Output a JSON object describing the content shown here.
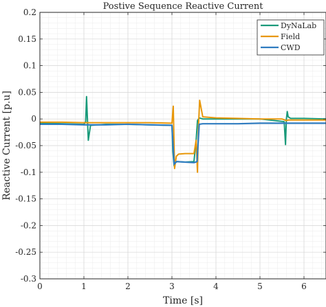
{
  "chart_data": {
    "type": "line",
    "title": "Postive Sequence Reactive Current",
    "xlabel": "Time [s]",
    "ylabel": "Reactive Current [p.u]",
    "xlim": [
      0,
      6.5
    ],
    "ylim": [
      -0.3,
      0.2
    ],
    "xticks": [
      0,
      1,
      2,
      3,
      4,
      5,
      6
    ],
    "xtick_labels": [
      "0",
      "1",
      "2",
      "3",
      "4",
      "5",
      "6"
    ],
    "yticks": [
      0.2,
      0.15,
      0.1,
      0.05,
      0,
      -0.05,
      -0.1,
      -0.15,
      -0.2,
      -0.25,
      -0.3
    ],
    "ytick_labels": [
      "0.2",
      "0.15",
      "0.1",
      "0.05",
      "0",
      "-0.05",
      "-0.1",
      "-0.15",
      "-0.2",
      "-0.25",
      "-0.3"
    ],
    "grid": true,
    "minor_grid": true,
    "legend_position": "top-right",
    "series": [
      {
        "name": "DyNaLab",
        "color": "#1a9a7a",
        "x": [
          0,
          0.5,
          1.0,
          1.04,
          1.06,
          1.08,
          1.1,
          1.15,
          1.5,
          2.0,
          2.5,
          3.0,
          3.02,
          3.05,
          3.08,
          3.12,
          3.3,
          3.5,
          3.55,
          3.58,
          3.62,
          3.7,
          4.0,
          4.5,
          5.0,
          5.55,
          5.58,
          5.6,
          5.62,
          5.64,
          5.7,
          6.0,
          6.5
        ],
        "y": [
          -0.008,
          -0.009,
          -0.01,
          -0.005,
          0.042,
          0.0,
          -0.04,
          -0.012,
          -0.01,
          -0.01,
          -0.011,
          -0.012,
          -0.06,
          -0.088,
          -0.082,
          -0.08,
          -0.081,
          -0.08,
          -0.04,
          -0.003,
          0.002,
          0.0,
          0.0,
          0.0,
          0.0,
          -0.005,
          -0.048,
          0.0,
          0.014,
          0.004,
          0.001,
          0.001,
          0.0
        ]
      },
      {
        "name": "Field",
        "color": "#e8970a",
        "x": [
          0,
          0.5,
          1.0,
          1.5,
          2.0,
          2.5,
          3.0,
          3.03,
          3.06,
          3.1,
          3.15,
          3.3,
          3.5,
          3.55,
          3.58,
          3.6,
          3.63,
          3.7,
          4.0,
          4.5,
          5.0,
          5.5,
          5.6,
          5.65,
          6.0,
          6.5
        ],
        "y": [
          -0.006,
          -0.006,
          -0.007,
          -0.007,
          -0.007,
          -0.007,
          -0.008,
          0.024,
          -0.093,
          -0.07,
          -0.066,
          -0.065,
          -0.065,
          -0.04,
          -0.1,
          -0.02,
          0.035,
          0.004,
          0.002,
          0.001,
          0.0,
          0.0,
          -0.003,
          -0.002,
          -0.002,
          -0.002
        ]
      },
      {
        "name": "CWD",
        "color": "#2f7cc0",
        "x": [
          0,
          0.5,
          1.0,
          1.5,
          2.0,
          2.5,
          3.0,
          3.05,
          3.1,
          3.3,
          3.5,
          3.57,
          3.62,
          3.7,
          4.0,
          4.5,
          5.0,
          5.5,
          6.0,
          6.5
        ],
        "y": [
          -0.01,
          -0.01,
          -0.011,
          -0.011,
          -0.01,
          -0.011,
          -0.012,
          -0.085,
          -0.08,
          -0.081,
          -0.082,
          -0.08,
          -0.01,
          -0.009,
          -0.009,
          -0.009,
          -0.008,
          -0.008,
          -0.008,
          -0.008
        ]
      }
    ]
  }
}
